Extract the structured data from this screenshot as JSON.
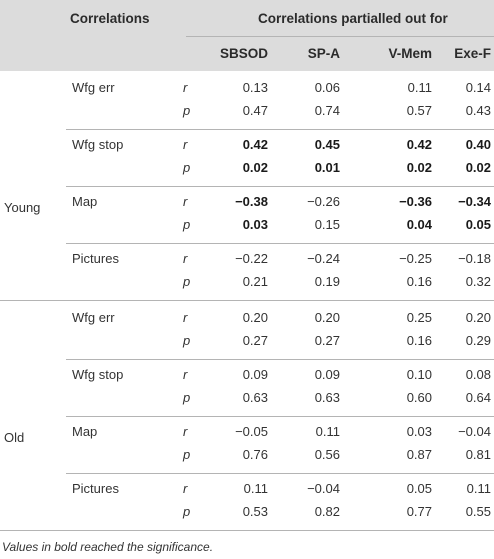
{
  "header": {
    "correlations": "Correlations",
    "partialled": "Correlations partialled out for",
    "columns": [
      "SBSOD",
      "SP-A",
      "V-Mem",
      "Exe-F"
    ]
  },
  "groups": [
    {
      "label": "Young",
      "measures": [
        {
          "name": "Wfg err",
          "r": {
            "stat": "r",
            "values": [
              "0.13",
              "0.06",
              "0.11",
              "0.14"
            ],
            "bold": [
              false,
              false,
              false,
              false
            ]
          },
          "p": {
            "stat": "p",
            "values": [
              "0.47",
              "0.74",
              "0.57",
              "0.43"
            ],
            "bold": [
              false,
              false,
              false,
              false
            ]
          }
        },
        {
          "name": "Wfg stop",
          "r": {
            "stat": "r",
            "values": [
              "0.42",
              "0.45",
              "0.42",
              "0.40"
            ],
            "bold": [
              true,
              true,
              true,
              true
            ]
          },
          "p": {
            "stat": "p",
            "values": [
              "0.02",
              "0.01",
              "0.02",
              "0.02"
            ],
            "bold": [
              true,
              true,
              true,
              true
            ]
          }
        },
        {
          "name": "Map",
          "r": {
            "stat": "r",
            "values": [
              "−0.38",
              "−0.26",
              "−0.36",
              "−0.34"
            ],
            "bold": [
              true,
              false,
              true,
              true
            ]
          },
          "p": {
            "stat": "p",
            "values": [
              "0.03",
              "0.15",
              "0.04",
              "0.05"
            ],
            "bold": [
              true,
              false,
              true,
              true
            ]
          }
        },
        {
          "name": "Pictures",
          "r": {
            "stat": "r",
            "values": [
              "−0.22",
              "−0.24",
              "−0.25",
              "−0.18"
            ],
            "bold": [
              false,
              false,
              false,
              false
            ]
          },
          "p": {
            "stat": "p",
            "values": [
              "0.21",
              "0.19",
              "0.16",
              "0.32"
            ],
            "bold": [
              false,
              false,
              false,
              false
            ]
          }
        }
      ]
    },
    {
      "label": "Old",
      "measures": [
        {
          "name": "Wfg err",
          "r": {
            "stat": "r",
            "values": [
              "0.20",
              "0.20",
              "0.25",
              "0.20"
            ],
            "bold": [
              false,
              false,
              false,
              false
            ]
          },
          "p": {
            "stat": "p",
            "values": [
              "0.27",
              "0.27",
              "0.16",
              "0.29"
            ],
            "bold": [
              false,
              false,
              false,
              false
            ]
          }
        },
        {
          "name": "Wfg stop",
          "r": {
            "stat": "r",
            "values": [
              "0.09",
              "0.09",
              "0.10",
              "0.08"
            ],
            "bold": [
              false,
              false,
              false,
              false
            ]
          },
          "p": {
            "stat": "p",
            "values": [
              "0.63",
              "0.63",
              "0.60",
              "0.64"
            ],
            "bold": [
              false,
              false,
              false,
              false
            ]
          }
        },
        {
          "name": "Map",
          "r": {
            "stat": "r",
            "values": [
              "−0.05",
              "0.11",
              "0.03",
              "−0.04"
            ],
            "bold": [
              false,
              false,
              false,
              false
            ]
          },
          "p": {
            "stat": "p",
            "values": [
              "0.76",
              "0.56",
              "0.87",
              "0.81"
            ],
            "bold": [
              false,
              false,
              false,
              false
            ]
          }
        },
        {
          "name": "Pictures",
          "r": {
            "stat": "r",
            "values": [
              "0.11",
              "−0.04",
              "0.05",
              "0.11"
            ],
            "bold": [
              false,
              false,
              false,
              false
            ]
          },
          "p": {
            "stat": "p",
            "values": [
              "0.53",
              "0.82",
              "0.77",
              "0.55"
            ],
            "bold": [
              false,
              false,
              false,
              false
            ]
          }
        }
      ]
    }
  ],
  "footnote": "Values in bold reached the significance."
}
